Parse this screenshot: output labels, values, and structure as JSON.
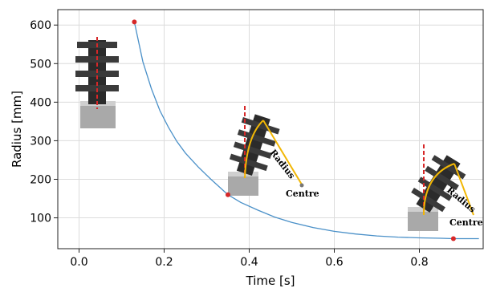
{
  "chart_data": {
    "type": "line",
    "title": "",
    "xlabel": "Time [s]",
    "ylabel": "Radius [mm]",
    "xlim": [
      -0.05,
      0.95
    ],
    "ylim": [
      20,
      640
    ],
    "xticks": [
      0.0,
      0.2,
      0.4,
      0.6,
      0.8
    ],
    "xtick_labels": [
      "0.0",
      "0.2",
      "0.4",
      "0.6",
      "0.8"
    ],
    "yticks": [
      100,
      200,
      300,
      400,
      500,
      600
    ],
    "ytick_labels": [
      "100",
      "200",
      "300",
      "400",
      "500",
      "600"
    ],
    "grid": true,
    "line_color": "#4a90c8",
    "marker_color": "#d62728",
    "series": [
      {
        "x": [
          0.13,
          0.15,
          0.17,
          0.19,
          0.21,
          0.23,
          0.25,
          0.28,
          0.31,
          0.35,
          0.38,
          0.42,
          0.46,
          0.5,
          0.55,
          0.6,
          0.65,
          0.7,
          0.75,
          0.8,
          0.85,
          0.88,
          0.94
        ],
        "y": [
          608,
          505,
          435,
          378,
          335,
          298,
          268,
          232,
          200,
          160,
          140,
          120,
          102,
          88,
          75,
          65,
          58,
          53,
          50,
          48,
          47,
          46,
          46
        ]
      }
    ],
    "markers": [
      {
        "x": 0.13,
        "y": 608
      },
      {
        "x": 0.35,
        "y": 160
      },
      {
        "x": 0.88,
        "y": 46
      }
    ],
    "annotations": [
      {
        "text": "Radius"
      },
      {
        "text": "Centre"
      },
      {
        "text": "Radius"
      },
      {
        "text": "Centre"
      }
    ]
  }
}
